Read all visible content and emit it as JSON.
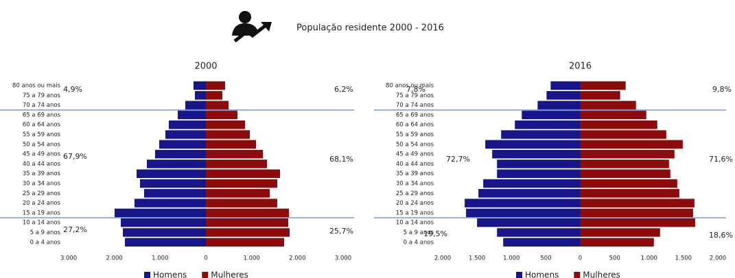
{
  "title": "População residente 2000 - 2016",
  "chart_data": [
    {
      "type": "pyramid",
      "title": "2000",
      "categories": [
        "80 anos ou mais",
        "75 a 79 anos",
        "70 a 74 anos",
        "65 a 69 anos",
        "60 a 64 anos",
        "55 a 59 anos",
        "50 a 54 anos",
        "45 a 49 anos",
        "40 a 44 anos",
        "35 a 39 anos",
        "30 a 34 anos",
        "25 a 29 anos",
        "20 a 24 anos",
        "15 a 19 anos",
        "10 a 14 anos",
        "5 a 9 anos",
        "0 a 4 anos"
      ],
      "series": [
        {
          "name": "Homens",
          "color": "#16168a",
          "values": [
            -270,
            -240,
            -450,
            -615,
            -810,
            -885,
            -1020,
            -1110,
            -1290,
            -1515,
            -1440,
            -1350,
            -1560,
            -1995,
            -1860,
            -1815,
            -1770
          ]
        },
        {
          "name": "Mulheres",
          "color": "#8c0c0c",
          "values": [
            420,
            360,
            495,
            690,
            855,
            960,
            1095,
            1245,
            1335,
            1620,
            1560,
            1395,
            1560,
            1815,
            1800,
            1830,
            1710
          ]
        }
      ],
      "xlim": [
        -3000,
        3000
      ],
      "xticks": [
        {
          "value": -3000,
          "label": "3.000"
        },
        {
          "value": -2000,
          "label": "2.000"
        },
        {
          "value": -1000,
          "label": "1.000"
        },
        0,
        {
          "value": 1000,
          "label": "1.000"
        },
        {
          "value": 2000,
          "label": "2.000"
        },
        {
          "value": 3000,
          "label": "3.000"
        }
      ],
      "annotations": [
        {
          "left": "4,9%",
          "right": "6,2%"
        },
        {
          "left": "67,9%",
          "right": "68,1%"
        },
        {
          "left": "27,2%",
          "right": "25,7%"
        }
      ],
      "legend": "bottom"
    },
    {
      "type": "pyramid",
      "title": "2016",
      "categories": [
        "80 anos ou mais",
        "75 a 79 anos",
        "70 a 74 anos",
        "65 a 69 anos",
        "60 a 64 anos",
        "55 a 59 anos",
        "50 a 54 anos",
        "45 a 49 anos",
        "40 a 44 anos",
        "35 a 39 anos",
        "30 a 34 anos",
        "25 a 29 anos",
        "20 a 24 anos",
        "15 a 19 anos",
        "10 a 14 anos",
        "5 a 9 anos",
        "0 a 4 anos"
      ],
      "series": [
        {
          "name": "Homens",
          "color": "#16168a",
          "values": [
            -430,
            -490,
            -620,
            -850,
            -950,
            -1150,
            -1380,
            -1280,
            -1210,
            -1210,
            -1410,
            -1480,
            -1680,
            -1660,
            -1500,
            -1210,
            -1120
          ]
        },
        {
          "name": "Mulheres",
          "color": "#8c0c0c",
          "values": [
            660,
            580,
            810,
            960,
            1120,
            1250,
            1490,
            1370,
            1290,
            1310,
            1410,
            1440,
            1660,
            1640,
            1670,
            1160,
            1070
          ]
        }
      ],
      "xlim": [
        -2000,
        2000
      ],
      "xticks": [
        {
          "value": -2000,
          "label": "2.000"
        },
        {
          "value": -1500,
          "label": "1.500"
        },
        {
          "value": -1000,
          "label": "1.000"
        },
        {
          "value": -500,
          "label": "500"
        },
        0,
        {
          "value": 500,
          "label": "500"
        },
        {
          "value": 1000,
          "label": "1.000"
        },
        {
          "value": 1500,
          "label": "1.500"
        },
        {
          "value": 2000,
          "label": "2.000"
        }
      ],
      "annotations": [
        {
          "left": "7,8%",
          "right": "9,8%"
        },
        {
          "left": "72,7%",
          "right": "71,6%"
        },
        {
          "left": "19,5%",
          "right": "18,6%"
        }
      ],
      "legend": "bottom"
    }
  ]
}
